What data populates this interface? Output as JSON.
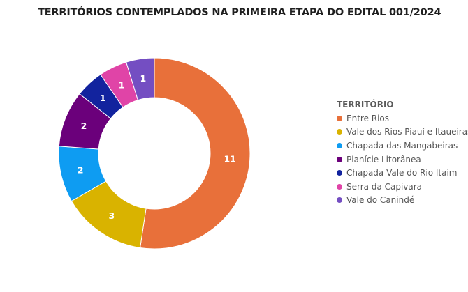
{
  "title": "TERRITÓRIOS CONTEMPLADOS NA PRIMEIRA ETAPA DO EDITAL 001/2024",
  "chart_data": {
    "type": "pie",
    "variant": "donut",
    "legend_title": "TERRITÓRIO",
    "legend_position": "right",
    "series": [
      {
        "name": "Entre Rios",
        "value": 11,
        "color": "#E8703A"
      },
      {
        "name": "Vale dos Rios Piauí e Itaueiras",
        "value": 3,
        "color": "#D9B300"
      },
      {
        "name": "Chapada das Mangabeiras",
        "value": 2,
        "color": "#0E9CF2"
      },
      {
        "name": "Planície Litorânea",
        "value": 2,
        "color": "#6B007B"
      },
      {
        "name": "Chapada Vale do Rio Itaim",
        "value": 1,
        "color": "#12239E"
      },
      {
        "name": "Serra da Capivara",
        "value": 1,
        "color": "#E044A7"
      },
      {
        "name": "Vale do Canindé",
        "value": 1,
        "color": "#744EC2"
      }
    ]
  }
}
